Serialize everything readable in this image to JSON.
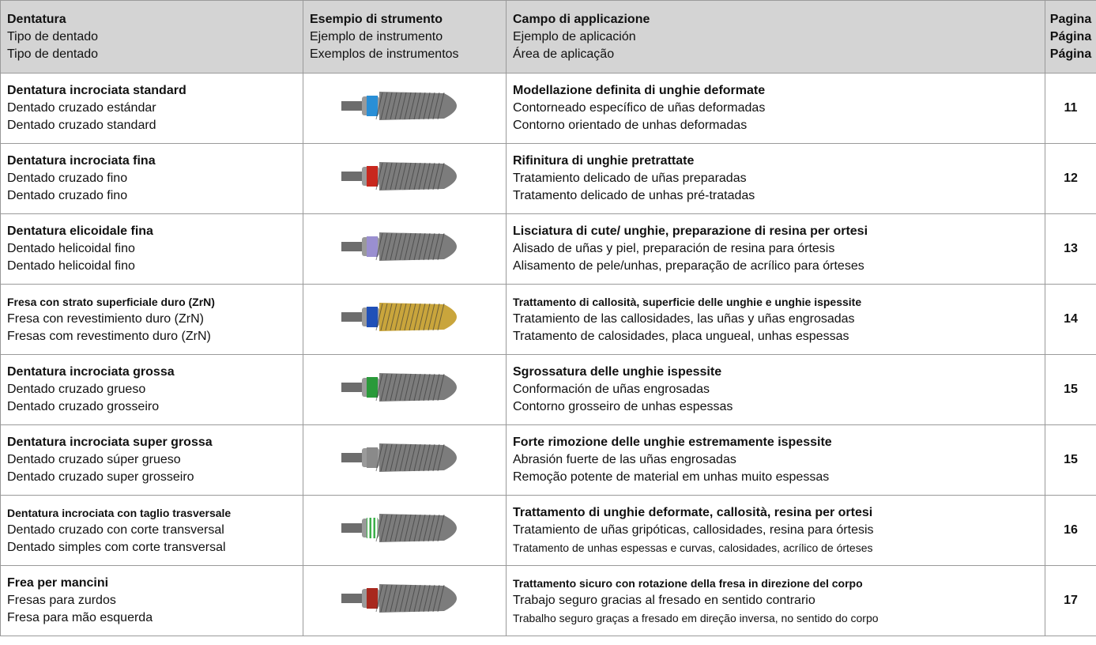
{
  "table": {
    "header": [
      [
        "Dentatura",
        "Tipo de dentado",
        "Tipo de dentado"
      ],
      [
        "Esempio di strumento",
        "Ejemplo de instrumento",
        "Exemplos de instrumentos"
      ],
      [
        "Campo di applicazione",
        "Ejemplo de aplicación",
        "Área de aplicação"
      ],
      [
        "Pagina",
        "Página",
        "Página"
      ]
    ],
    "rows": [
      [
        [
          "Dentatura incrociata standard",
          "Dentado cruzado estándar",
          "Dentado cruzado standard"
        ],
        [
          "Modellazione definita di unghie deformate",
          "Contorneado específico de uñas deformadas",
          "Contorno orientado de unhas deformadas"
        ],
        11
      ],
      [
        [
          "Dentatura incrociata fina",
          "Dentado cruzado fino",
          "Dentado cruzado fino"
        ],
        [
          "Rifinitura di unghie pretrattate",
          "Tratamiento delicado de uñas preparadas",
          "Tratamento delicado de unhas pré-tratadas"
        ],
        12
      ],
      [
        [
          "Dentatura elicoidale fina",
          "Dentado helicoidal fino",
          "Dentado helicoidal fino"
        ],
        [
          "Lisciatura di cute/ unghie, preparazione di resina per ortesi",
          "Alisado de uñas y piel, preparación de resina para órtesis",
          "Alisamento de pele/unhas, preparação de acrílico para órteses"
        ],
        13
      ],
      [
        [
          "Fresa con strato superficiale duro (ZrN)",
          "Fresa con revestimiento duro (ZrN)",
          "Fresas com revestimento duro (ZrN)"
        ],
        [
          "Trattamento di callosità, superficie delle unghie e unghie ispessite",
          "Tratamiento de las callosidades, las uñas y uñas engrosadas",
          "Tratamento de calosidades, placa ungueal, unhas espessas"
        ],
        14
      ],
      [
        [
          "Dentatura incrociata grossa",
          "Dentado cruzado grueso",
          "Dentado cruzado grosseiro"
        ],
        [
          "Sgrossatura delle unghie ispessite",
          "Conformación de uñas engrosadas",
          "Contorno grosseiro de unhas espessas"
        ],
        15
      ],
      [
        [
          "Dentatura incrociata super grossa",
          "Dentado cruzado súper grueso",
          "Dentado cruzado super grosseiro"
        ],
        [
          "Forte rimozione delle unghie estremamente ispessite",
          "Abrasión fuerte de las uñas engrosadas",
          "Remoção potente de material em unhas muito espessas"
        ],
        15
      ],
      [
        [
          "Dentatura incrociata con taglio trasversale",
          "Dentado cruzado con corte transversal",
          "Dentado simples com corte transversal"
        ],
        [
          "Trattamento di unghie deformate, callosità, resina per ortesi",
          "Tratamiento de uñas gripóticas, callosidades, resina para órtesis",
          "Tratamento de unhas espessas e curvas, calosidades, acrílico de órteses"
        ],
        16
      ],
      [
        [
          "Frea per mancini",
          "Fresas para zurdos",
          "Fresa para mão esquerda"
        ],
        [
          "Trattamento sicuro con rotazione della fresa in direzione del corpo",
          "Trabajo seguro gracias al fresado en sentido contrario",
          "Trabalho seguro graças a fresado em direção inversa, no sentido do corpo"
        ],
        17
      ]
    ]
  }
}
